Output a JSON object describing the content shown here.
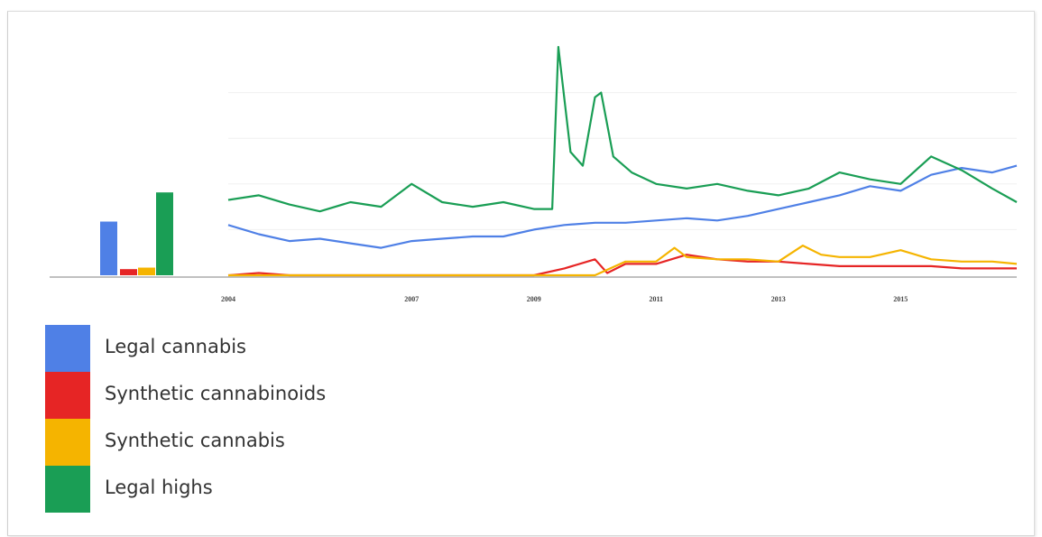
{
  "chart_data": {
    "type": "line",
    "title": "",
    "xlabel": "",
    "ylabel": "",
    "x_ticks": [
      "2004",
      "2007",
      "2009",
      "2011",
      "2013",
      "2015"
    ],
    "x_range": [
      2004.0,
      2016.9
    ],
    "y_range": [
      0,
      100
    ],
    "grid": true,
    "summary_bars": {
      "type": "bar",
      "values": [
        35,
        4,
        5,
        54
      ],
      "series_order": [
        "Legal cannabis",
        "Synthetic cannabinoids",
        "Synthetic cannabis",
        "Legal highs"
      ]
    },
    "series": [
      {
        "name": "Legal cannabis",
        "color": "#4f80e6",
        "x": [
          2004.0,
          2004.5,
          2005.0,
          2005.5,
          2006.0,
          2006.5,
          2007.0,
          2007.5,
          2008.0,
          2008.5,
          2009.0,
          2009.5,
          2010.0,
          2010.5,
          2011.0,
          2011.5,
          2012.0,
          2012.5,
          2013.0,
          2013.5,
          2014.0,
          2014.5,
          2015.0,
          2015.5,
          2016.0,
          2016.5,
          2016.9
        ],
        "values": [
          22,
          18,
          15,
          16,
          14,
          12,
          15,
          16,
          17,
          17,
          20,
          22,
          23,
          23,
          24,
          25,
          24,
          26,
          29,
          32,
          35,
          39,
          37,
          44,
          47,
          45,
          48
        ]
      },
      {
        "name": "Synthetic cannabinoids",
        "color": "#e62525",
        "x": [
          2004.0,
          2004.5,
          2005.0,
          2006.0,
          2007.0,
          2008.0,
          2009.0,
          2009.5,
          2010.0,
          2010.2,
          2010.5,
          2011.0,
          2011.5,
          2012.0,
          2012.5,
          2013.0,
          2013.5,
          2014.0,
          2014.5,
          2015.0,
          2015.5,
          2016.0,
          2016.5,
          2016.9
        ],
        "values": [
          0,
          1,
          0,
          0,
          0,
          0,
          0,
          3,
          7,
          1,
          5,
          5,
          9,
          7,
          6,
          6,
          5,
          4,
          4,
          4,
          4,
          3,
          3,
          3
        ]
      },
      {
        "name": "Synthetic cannabis",
        "color": "#f5b400",
        "x": [
          2004.0,
          2005.0,
          2006.0,
          2007.0,
          2008.0,
          2009.0,
          2009.5,
          2010.0,
          2010.5,
          2011.0,
          2011.3,
          2011.5,
          2012.0,
          2012.5,
          2013.0,
          2013.4,
          2013.7,
          2014.0,
          2014.5,
          2015.0,
          2015.5,
          2016.0,
          2016.5,
          2016.9
        ],
        "values": [
          0,
          0,
          0,
          0,
          0,
          0,
          0,
          0,
          6,
          6,
          12,
          8,
          7,
          7,
          6,
          13,
          9,
          8,
          8,
          11,
          7,
          6,
          6,
          5
        ]
      },
      {
        "name": "Legal highs",
        "color": "#1a9e55",
        "x": [
          2004.0,
          2004.5,
          2005.0,
          2005.5,
          2006.0,
          2006.5,
          2007.0,
          2007.5,
          2008.0,
          2008.5,
          2009.0,
          2009.3,
          2009.4,
          2009.6,
          2009.8,
          2010.0,
          2010.1,
          2010.3,
          2010.6,
          2011.0,
          2011.5,
          2012.0,
          2012.5,
          2013.0,
          2013.5,
          2014.0,
          2014.5,
          2015.0,
          2015.5,
          2016.0,
          2016.5,
          2016.9
        ],
        "values": [
          33,
          35,
          31,
          28,
          32,
          30,
          40,
          32,
          30,
          32,
          29,
          29,
          100,
          54,
          48,
          78,
          80,
          52,
          45,
          40,
          38,
          40,
          37,
          35,
          38,
          45,
          42,
          40,
          52,
          46,
          38,
          32
        ]
      }
    ],
    "legend": [
      {
        "label": "Legal cannabis",
        "color": "#4f80e6"
      },
      {
        "label": "Synthetic cannabinoids",
        "color": "#e62525"
      },
      {
        "label": "Synthetic cannabis",
        "color": "#f5b400"
      },
      {
        "label": "Legal highs",
        "color": "#1a9e55"
      }
    ]
  }
}
